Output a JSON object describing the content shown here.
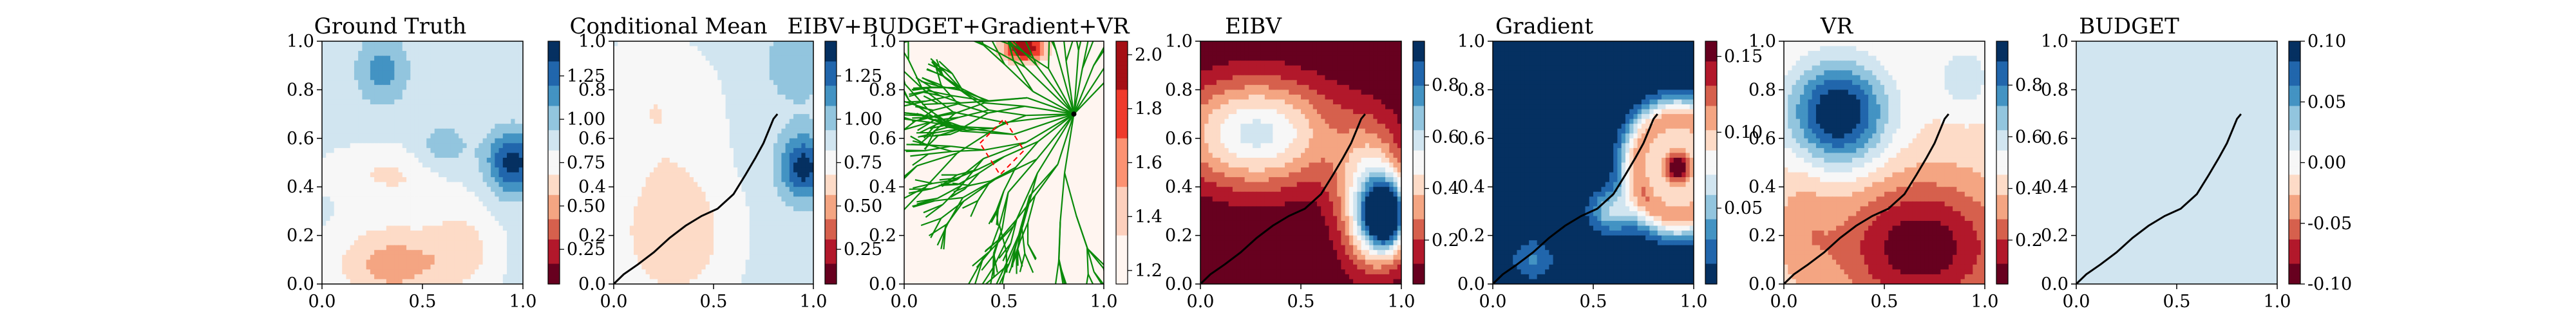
{
  "colors": {
    "rdbu": [
      "#67001f",
      "#b2182b",
      "#d6604d",
      "#f4a582",
      "#fddbc7",
      "#f7f7f7",
      "#d1e5f0",
      "#92c5de",
      "#4393c3",
      "#2166ac",
      "#053061"
    ],
    "reds": [
      "#fff5f0",
      "#fdd0bd",
      "#fc9272",
      "#ef3b2c",
      "#a50f15"
    ],
    "path": "#000000",
    "tree": "#0a8a0a",
    "highlight": "#ff0000"
  },
  "chart_data": [
    {
      "type": "heatmap",
      "title": "Ground Truth",
      "xlim": [
        0,
        1
      ],
      "ylim": [
        0,
        1
      ],
      "xticks": [
        "0.0",
        "0.5",
        "1.0"
      ],
      "yticks": [
        "0.0",
        "0.2",
        "0.4",
        "0.6",
        "0.8",
        "1.0"
      ],
      "colorbar": {
        "ticks": [
          "0.25",
          "0.50",
          "0.75",
          "1.00",
          "1.25"
        ],
        "range": [
          0.05,
          1.45
        ]
      },
      "path": false
    },
    {
      "type": "heatmap",
      "title": "Conditional Mean",
      "xlim": [
        0,
        1
      ],
      "ylim": [
        0,
        1
      ],
      "xticks": [
        "0.0",
        "0.5",
        "1.0"
      ],
      "yticks": [
        "0.0",
        "0.2",
        "0.4",
        "0.6",
        "0.8",
        "1.0"
      ],
      "colorbar": {
        "ticks": [
          "0.25",
          "0.50",
          "0.75",
          "1.00",
          "1.25"
        ],
        "range": [
          0.05,
          1.45
        ]
      },
      "path": true
    },
    {
      "type": "heatmap",
      "title": "EIBV+BUDGET+Gradient+VR",
      "xlim": [
        0,
        1
      ],
      "ylim": [
        0,
        1
      ],
      "xticks": [
        "0.0",
        "0.5",
        "1.0"
      ],
      "yticks": [
        "0.0",
        "0.2",
        "0.4",
        "0.6",
        "0.8",
        "1.0"
      ],
      "colorbar": {
        "ticks": [
          "1.2",
          "1.4",
          "1.6",
          "1.8",
          "2.0"
        ],
        "range": [
          1.15,
          2.05
        ]
      },
      "tree_root": [
        0.85,
        0.7
      ],
      "path": false
    },
    {
      "type": "heatmap",
      "title": "EIBV",
      "xlim": [
        0,
        1
      ],
      "ylim": [
        0,
        1
      ],
      "xticks": [
        "0.0",
        "0.5",
        "1.0"
      ],
      "yticks": [
        "0.0",
        "0.2",
        "0.4",
        "0.6",
        "0.8",
        "1.0"
      ],
      "colorbar": {
        "ticks": [
          "0.2",
          "0.4",
          "0.6",
          "0.8"
        ],
        "range": [
          0.03,
          0.97
        ]
      },
      "path": true
    },
    {
      "type": "heatmap",
      "title": "Gradient",
      "xlim": [
        0,
        1
      ],
      "ylim": [
        0,
        1
      ],
      "xticks": [
        "0.0",
        "0.5",
        "1.0"
      ],
      "yticks": [
        "0.0",
        "0.2",
        "0.4",
        "0.6",
        "0.8",
        "1.0"
      ],
      "colorbar": {
        "ticks": [
          "0.05",
          "0.10",
          "0.15"
        ],
        "range": [
          0.0,
          0.16
        ]
      },
      "path": true
    },
    {
      "type": "heatmap",
      "title": "VR",
      "xlim": [
        0,
        1
      ],
      "ylim": [
        0,
        1
      ],
      "xticks": [
        "0.0",
        "0.5",
        "1.0"
      ],
      "yticks": [
        "0.0",
        "0.2",
        "0.4",
        "0.6",
        "0.8",
        "1.0"
      ],
      "colorbar": {
        "ticks": [
          "0.2",
          "0.4",
          "0.6",
          "0.8"
        ],
        "range": [
          0.03,
          0.97
        ]
      },
      "path": true
    },
    {
      "type": "heatmap",
      "title": "BUDGET",
      "xlim": [
        0,
        1
      ],
      "ylim": [
        0,
        1
      ],
      "xticks": [
        "0.0",
        "0.5",
        "1.0"
      ],
      "yticks": [
        "0.0",
        "0.2",
        "0.4",
        "0.6",
        "0.8",
        "1.0"
      ],
      "colorbar": {
        "ticks": [
          "-0.10",
          "-0.05",
          "0.00",
          "0.05",
          "0.10"
        ],
        "range": [
          -0.1,
          0.1
        ]
      },
      "path": true
    }
  ],
  "path_points": [
    [
      0.0,
      0.0
    ],
    [
      0.05,
      0.04
    ],
    [
      0.12,
      0.08
    ],
    [
      0.2,
      0.13
    ],
    [
      0.28,
      0.19
    ],
    [
      0.36,
      0.24
    ],
    [
      0.44,
      0.28
    ],
    [
      0.52,
      0.31
    ],
    [
      0.6,
      0.37
    ],
    [
      0.66,
      0.45
    ],
    [
      0.71,
      0.52
    ],
    [
      0.75,
      0.58
    ],
    [
      0.78,
      0.64
    ],
    [
      0.8,
      0.68
    ],
    [
      0.82,
      0.7
    ]
  ]
}
